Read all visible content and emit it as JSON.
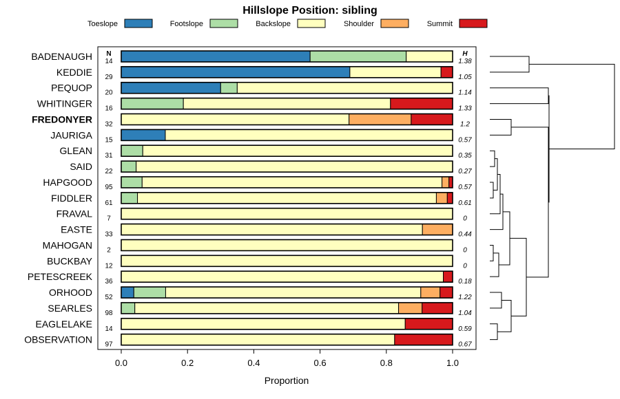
{
  "chart_data": {
    "type": "bar",
    "orientation": "horizontal",
    "stacked": true,
    "title": "Hillslope Position: sibling",
    "xlabel": "Proportion",
    "ylabel": "",
    "xlim": [
      0,
      1
    ],
    "xticks": [
      "0.0",
      "0.2",
      "0.4",
      "0.6",
      "0.8",
      "1.0"
    ],
    "n_header": "N",
    "h_header": "H",
    "highlighted_category": "FREDONYER",
    "series": [
      {
        "name": "Toeslope",
        "color": "#2e7fb8"
      },
      {
        "name": "Footslope",
        "color": "#addea6"
      },
      {
        "name": "Backslope",
        "color": "#ffffbf"
      },
      {
        "name": "Shoulder",
        "color": "#fdae61"
      },
      {
        "name": "Summit",
        "color": "#d7191c"
      }
    ],
    "rows": [
      {
        "label": "BADENAUGH",
        "n": "14",
        "h": "1.38",
        "values": [
          0.57,
          0.29,
          0.14,
          0,
          0
        ]
      },
      {
        "label": "KEDDIE",
        "n": "29",
        "h": "1.05",
        "values": [
          0.69,
          0,
          0.275,
          0,
          0.035
        ]
      },
      {
        "label": "PEQUOP",
        "n": "20",
        "h": "1.14",
        "values": [
          0.3,
          0.05,
          0.65,
          0,
          0
        ]
      },
      {
        "label": "WHITINGER",
        "n": "16",
        "h": "1.33",
        "values": [
          0,
          0.1875,
          0.625,
          0,
          0.1875
        ]
      },
      {
        "label": "FREDONYER",
        "n": "32",
        "h": "1.2",
        "values": [
          0,
          0,
          0.6875,
          0.1875,
          0.125
        ]
      },
      {
        "label": "JAURIGA",
        "n": "15",
        "h": "0.57",
        "values": [
          0.133,
          0,
          0.867,
          0,
          0
        ]
      },
      {
        "label": "GLEAN",
        "n": "31",
        "h": "0.35",
        "values": [
          0,
          0.065,
          0.935,
          0,
          0
        ]
      },
      {
        "label": "SAID",
        "n": "22",
        "h": "0.27",
        "values": [
          0,
          0.045,
          0.955,
          0,
          0
        ]
      },
      {
        "label": "HAPGOOD",
        "n": "95",
        "h": "0.57",
        "values": [
          0,
          0.063,
          0.905,
          0.021,
          0.011
        ]
      },
      {
        "label": "FIDDLER",
        "n": "61",
        "h": "0.61",
        "values": [
          0,
          0.049,
          0.902,
          0.033,
          0.016
        ]
      },
      {
        "label": "FRAVAL",
        "n": "7",
        "h": "0",
        "values": [
          0,
          0,
          1,
          0,
          0
        ]
      },
      {
        "label": "EASTE",
        "n": "33",
        "h": "0.44",
        "values": [
          0,
          0,
          0.909,
          0.091,
          0
        ]
      },
      {
        "label": "MAHOGAN",
        "n": "2",
        "h": "0",
        "values": [
          0,
          0,
          1,
          0,
          0
        ]
      },
      {
        "label": "BUCKBAY",
        "n": "12",
        "h": "0",
        "values": [
          0,
          0,
          1,
          0,
          0
        ]
      },
      {
        "label": "PETESCREEK",
        "n": "36",
        "h": "0.18",
        "values": [
          0,
          0,
          0.972,
          0,
          0.028
        ]
      },
      {
        "label": "ORHOOD",
        "n": "52",
        "h": "1.22",
        "values": [
          0.038,
          0.096,
          0.77,
          0.058,
          0.038
        ]
      },
      {
        "label": "SEARLES",
        "n": "98",
        "h": "1.04",
        "values": [
          0,
          0.041,
          0.796,
          0.071,
          0.092
        ]
      },
      {
        "label": "EAGLELAKE",
        "n": "14",
        "h": "0.59",
        "values": [
          0,
          0,
          0.857,
          0,
          0.143
        ]
      },
      {
        "label": "OBSERVATION",
        "n": "97",
        "h": "0.67",
        "values": [
          0,
          0,
          0.825,
          0,
          0.175
        ]
      }
    ]
  }
}
